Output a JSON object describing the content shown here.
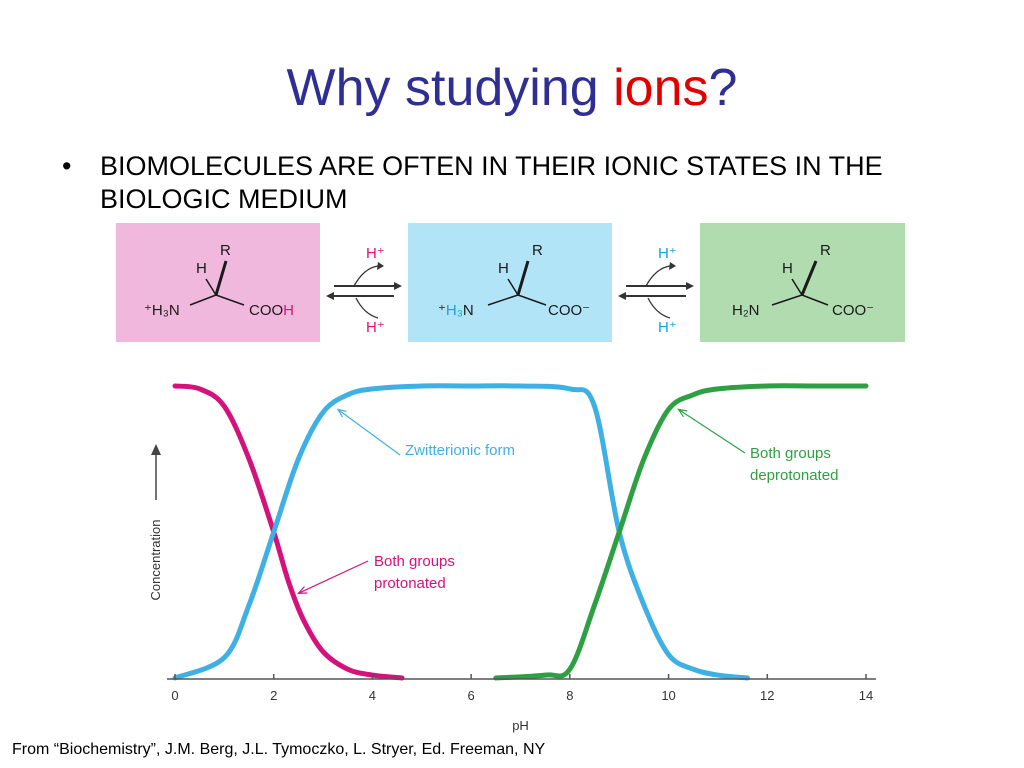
{
  "slide": {
    "title_main": "Why studying ",
    "title_accent": "ions",
    "title_end": "?",
    "bullet_symbol": "•",
    "bullet_text": "BIOMOLECULES ARE OFTEN IN THEIR IONIC STATES IN THE BIOLOGIC MEDIUM",
    "credit": "From “Biochemistry”, J.M. Berg, J.L. Tymoczko, L. Stryer, Ed. Freeman, NY"
  },
  "equilibrium": {
    "protonated": {
      "top": "R",
      "h": "H",
      "left": "⁺H₃N",
      "right_base": "COO",
      "right_h": "H"
    },
    "zwitterion": {
      "top": "R",
      "h": "H",
      "left_plus": "⁺",
      "left_h3": "H₃",
      "left_n": "N",
      "right": "COO⁻"
    },
    "deprotonated": {
      "top": "R",
      "h": "H",
      "left": "H₂N",
      "right": "COO⁻"
    },
    "arrow1": {
      "top": "H⁺",
      "bottom": "H⁺"
    },
    "arrow2": {
      "top": "H⁺",
      "bottom": "H⁺"
    }
  },
  "colors": {
    "protonated": "#d4127c",
    "zwitterionic": "#3fb0e4",
    "deprotonated": "#2ea043"
  },
  "chart_data": {
    "type": "line",
    "xlabel": "pH",
    "ylabel": "Concentration",
    "xlim": [
      0,
      14
    ],
    "ylim": [
      0,
      1
    ],
    "xticks": [
      0,
      2,
      4,
      6,
      8,
      10,
      12,
      14
    ],
    "grid": false,
    "legend": "none",
    "series": [
      {
        "name": "Both groups protonated",
        "color": "#d4127c",
        "x": [
          0,
          0.5,
          1.0,
          1.5,
          2.0,
          2.3,
          2.6,
          3.0,
          3.5,
          4.0,
          4.6
        ],
        "y": [
          1.0,
          0.99,
          0.93,
          0.75,
          0.5,
          0.33,
          0.2,
          0.09,
          0.03,
          0.01,
          0.0
        ]
      },
      {
        "name": "Zwitterionic form",
        "color": "#3fb0e4",
        "x": [
          0,
          1.0,
          1.5,
          2.0,
          2.5,
          3.0,
          3.5,
          4.0,
          5.0,
          6.0,
          7.0,
          8.0,
          8.5,
          9.0,
          9.5,
          10.0,
          10.5,
          11.0,
          11.6
        ],
        "y": [
          0.0,
          0.07,
          0.25,
          0.5,
          0.75,
          0.91,
          0.97,
          0.99,
          1.0,
          1.0,
          1.0,
          0.99,
          0.93,
          0.5,
          0.25,
          0.08,
          0.03,
          0.01,
          0.0
        ]
      },
      {
        "name": "Both groups deprotonated",
        "color": "#2ea043",
        "x": [
          6.5,
          7.5,
          8.0,
          8.5,
          9.0,
          9.5,
          10.0,
          10.5,
          11.0,
          12.0,
          13.0,
          14.0
        ],
        "y": [
          0.0,
          0.01,
          0.03,
          0.25,
          0.5,
          0.75,
          0.92,
          0.97,
          0.99,
          1.0,
          1.0,
          1.0
        ]
      }
    ],
    "annotations": [
      {
        "lines": [
          "Zwitterionic form"
        ],
        "color": "#3fb0e4",
        "target": [
          3.3,
          0.92
        ]
      },
      {
        "lines": [
          "Both groups",
          "protonated"
        ],
        "color": "#d4127c",
        "target": [
          2.5,
          0.29
        ]
      },
      {
        "lines": [
          "Both groups",
          "deprotonated"
        ],
        "color": "#2ea043",
        "target": [
          10.2,
          0.92
        ]
      }
    ]
  }
}
